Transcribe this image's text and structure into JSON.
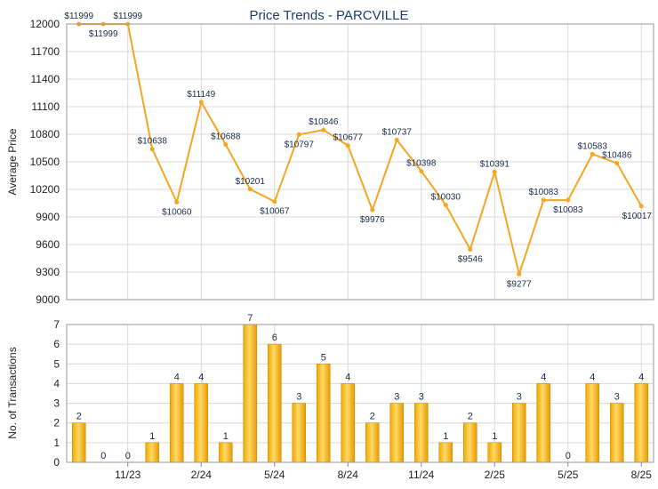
{
  "chart_data": [
    {
      "type": "line",
      "title": "Price Trends - PARCVILLE",
      "ylabel": "Average Price",
      "ylim": [
        9000,
        12000
      ],
      "yticks": [
        9000,
        9300,
        9600,
        9900,
        10200,
        10500,
        10800,
        11100,
        11400,
        11700,
        12000
      ],
      "series": [
        {
          "values": [
            11999,
            11999,
            11999,
            10638,
            10060,
            11149,
            10688,
            10201,
            10067,
            10797,
            10846,
            10677,
            9976,
            10737,
            10398,
            10030,
            9546,
            10391,
            9277,
            10083,
            10083,
            10583,
            10486,
            10017
          ],
          "labels": [
            "$11999",
            "$11999",
            "$11999",
            "$10638",
            "$10060",
            "$11149",
            "$10688",
            "$10201",
            "$10067",
            "$10797",
            "$10846",
            "$10677",
            "$9976",
            "$10737",
            "$10398",
            "$10030",
            "$9546",
            "$10391",
            "$9277",
            "$10083",
            "$10083",
            "$10583",
            "$10486",
            "$10017"
          ],
          "color": "#f5a623"
        }
      ],
      "grid": true
    },
    {
      "type": "bar",
      "ylabel": "No. of Transactions",
      "ylim": [
        0,
        7
      ],
      "yticks": [
        0,
        1,
        2,
        3,
        4,
        5,
        6,
        7
      ],
      "xticks": [
        "11/23",
        "2/24",
        "5/24",
        "8/24",
        "11/24",
        "2/25",
        "5/25",
        "8/25"
      ],
      "values": [
        2,
        0,
        0,
        1,
        4,
        4,
        1,
        7,
        6,
        3,
        5,
        4,
        2,
        3,
        3,
        1,
        2,
        1,
        3,
        4,
        0,
        4,
        3,
        4
      ],
      "color": "#f2b01e",
      "grid": true
    }
  ]
}
